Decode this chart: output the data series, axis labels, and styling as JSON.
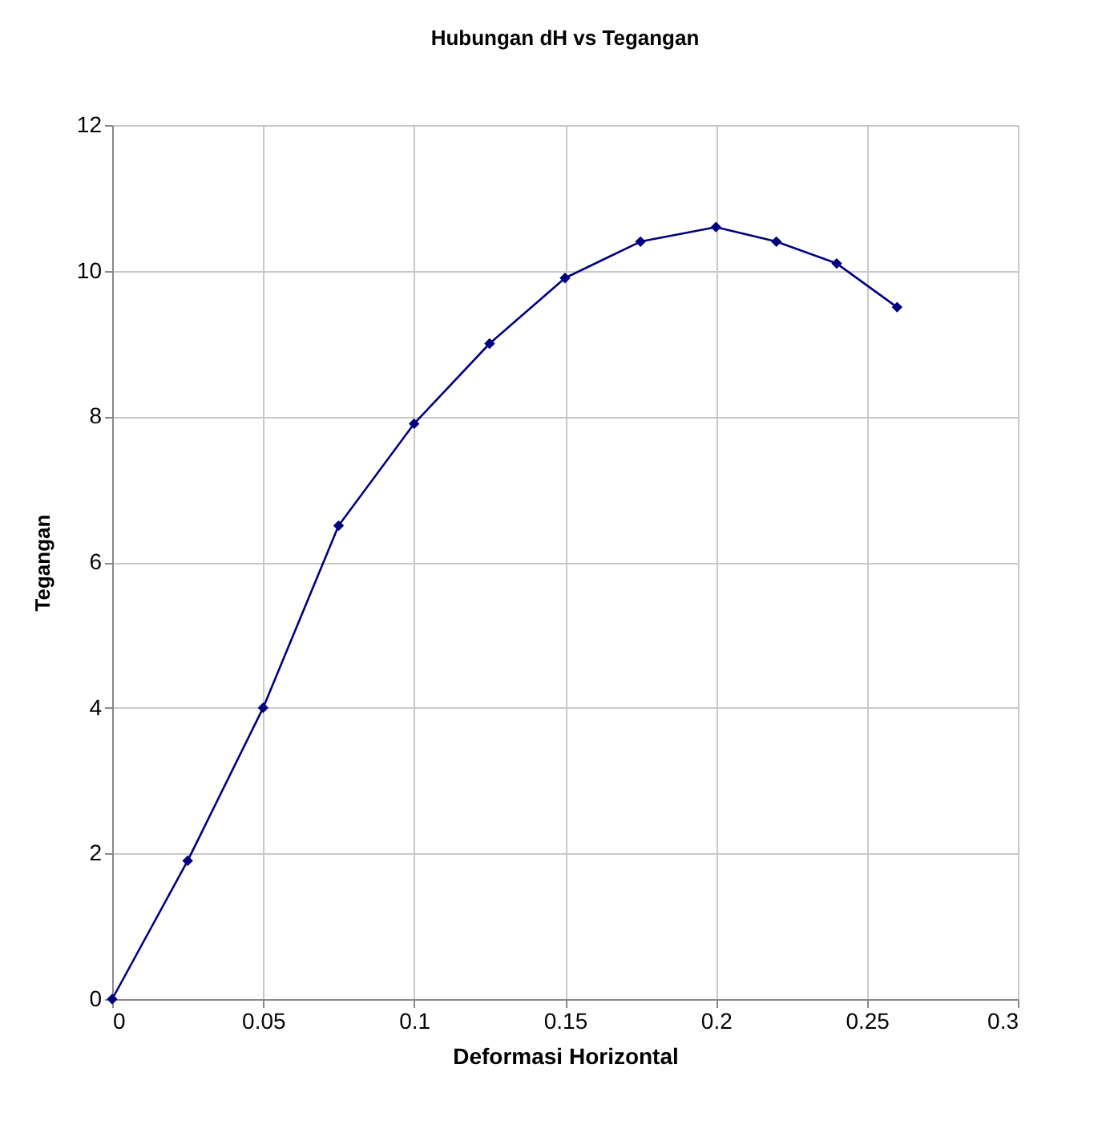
{
  "chart_data": {
    "type": "line",
    "title": "Hubungan dH vs Tegangan",
    "xlabel": "Deformasi Horizontal",
    "ylabel": "Tegangan",
    "x": [
      0,
      0.025,
      0.05,
      0.075,
      0.1,
      0.125,
      0.15,
      0.175,
      0.2,
      0.22,
      0.24,
      0.26
    ],
    "series": [
      {
        "color": "#000080",
        "values": [
          0,
          1.9,
          4,
          6.5,
          7.9,
          9,
          9.9,
          10.4,
          10.6,
          10.4,
          10.1,
          9.5
        ]
      }
    ],
    "xlim": [
      0,
      0.3
    ],
    "xticks": [
      0,
      0.05,
      0.1,
      0.15,
      0.2,
      0.25,
      0.3
    ],
    "ylim": [
      0,
      12
    ],
    "yticks": [
      0,
      2,
      4,
      6,
      8,
      10,
      12
    ],
    "grid": true,
    "marker": "diamond",
    "line_style": "solid"
  }
}
